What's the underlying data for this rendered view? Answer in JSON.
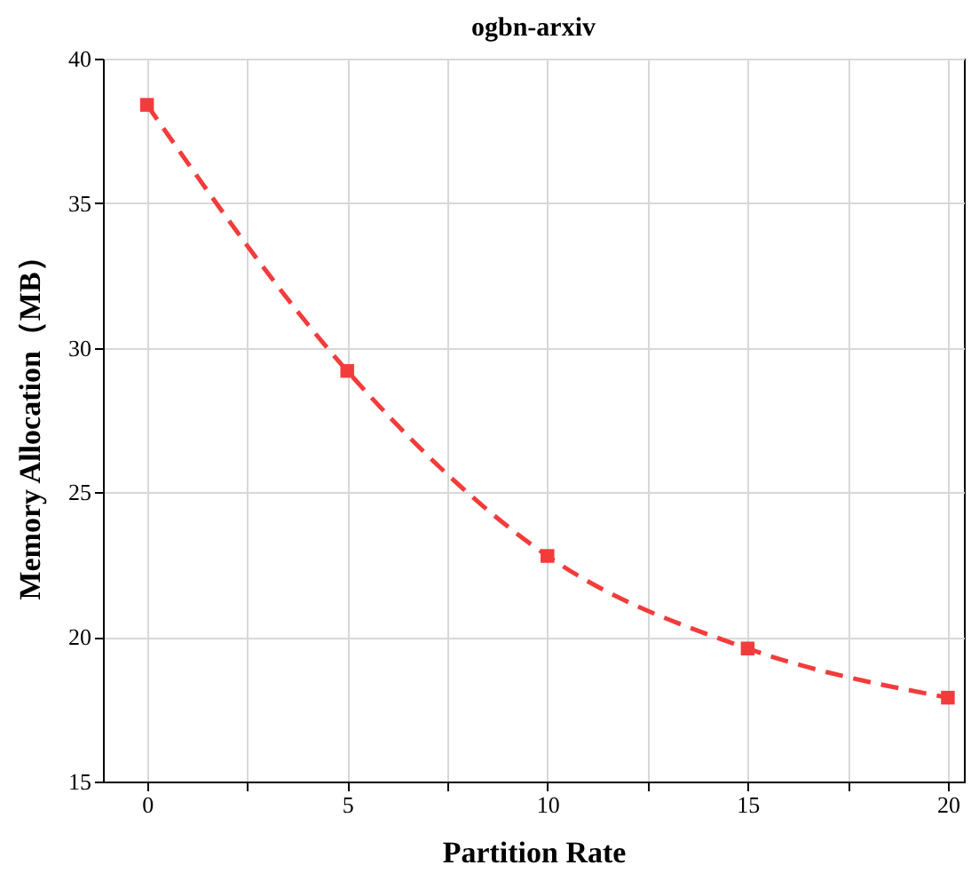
{
  "chart_data": {
    "type": "line",
    "title": "ogbn-arxiv",
    "xlabel": "Partition Rate",
    "ylabel": "Memory Allocation（MB）",
    "x": [
      0,
      5,
      10,
      15,
      20
    ],
    "series": [
      {
        "color": "#f23c3c",
        "values": [
          38.4,
          29.2,
          22.8,
          19.6,
          17.9
        ]
      }
    ],
    "xlim": [
      -1.1,
      20.4
    ],
    "xticks": [
      0,
      {
        "value": 2.5,
        "label": null
      },
      5,
      {
        "value": 7.5,
        "label": null
      },
      10,
      {
        "value": 12.5,
        "label": null
      },
      15,
      {
        "value": 17.5,
        "label": null
      },
      20
    ],
    "ylim": [
      15,
      40
    ],
    "yticks": [
      15,
      20,
      25,
      30,
      35,
      40
    ],
    "grid": true,
    "marker": "square",
    "line_style": "dashed"
  }
}
